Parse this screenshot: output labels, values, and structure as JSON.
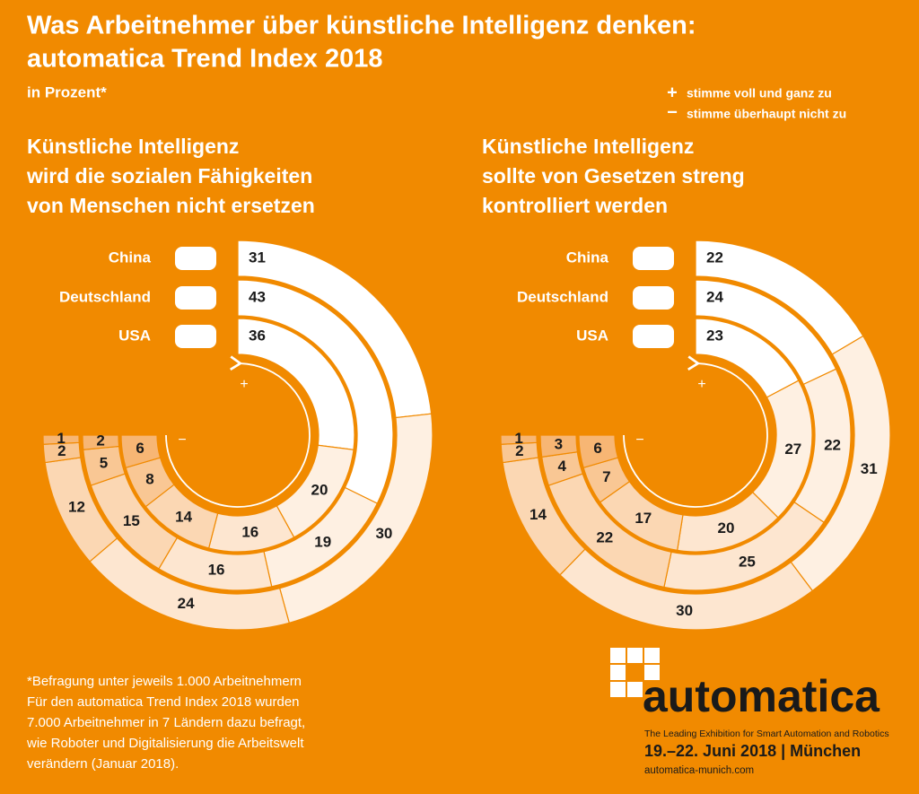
{
  "title": [
    "Was  Arbeitnehmer über künstliche Intelligenz denken:",
    "automatica Trend Index 2018"
  ],
  "subtitle": "in Prozent*",
  "legend": [
    {
      "symbol": "+",
      "label": "stimme voll und ganz zu"
    },
    {
      "symbol": "−",
      "label": "stimme überhaupt nicht zu"
    }
  ],
  "chart_data": [
    {
      "type": "radial_bar",
      "title": [
        "Künstliche Intelligenz",
        "wird die sozialen Fähigkeiten",
        "von Menschen nicht ersetzen"
      ],
      "categories": [
        "China",
        "Deutschland",
        "USA"
      ],
      "series": [
        {
          "color": "#ffffff",
          "values": [
            31,
            43,
            36
          ]
        },
        {
          "color": "#fef0e2",
          "values": [
            30,
            19,
            20
          ]
        },
        {
          "color": "#fde6d0",
          "values": [
            24,
            16,
            16
          ]
        },
        {
          "color": "#fbd7b3",
          "values": [
            12,
            15,
            14
          ]
        },
        {
          "color": "#f9c794",
          "values": [
            2,
            5,
            8
          ]
        },
        {
          "color": "#f7b674",
          "values": [
            1,
            2,
            6
          ]
        }
      ]
    },
    {
      "type": "radial_bar",
      "title": [
        "Künstliche Intelligenz",
        "sollte von Gesetzen streng",
        "kontrolliert werden"
      ],
      "categories": [
        "China",
        "Deutschland",
        "USA"
      ],
      "series": [
        {
          "color": "#ffffff",
          "values": [
            22,
            24,
            23
          ]
        },
        {
          "color": "#fef0e2",
          "values": [
            31,
            22,
            27
          ]
        },
        {
          "color": "#fde6d0",
          "values": [
            30,
            25,
            20
          ]
        },
        {
          "color": "#fbd7b3",
          "values": [
            14,
            22,
            17
          ]
        },
        {
          "color": "#f9c794",
          "values": [
            2,
            4,
            7
          ]
        },
        {
          "color": "#f7b674",
          "values": [
            1,
            3,
            6
          ]
        }
      ]
    }
  ],
  "footnote": [
    "*Befragung unter jeweils 1.000 Arbeitnehmern",
    "Für den automatica Trend Index 2018 wurden",
    "7.000 Arbeitnehmer in 7 Ländern dazu befragt,",
    "wie Roboter und Digitalisierung die Arbeitswelt",
    "verändern (Januar 2018)."
  ],
  "logo": {
    "name": "automatica",
    "tagline": "The Leading Exhibition for Smart Automation and Robotics",
    "dates": "19.–22. Juni 2018 | München",
    "url": "automatica-munich.com"
  }
}
